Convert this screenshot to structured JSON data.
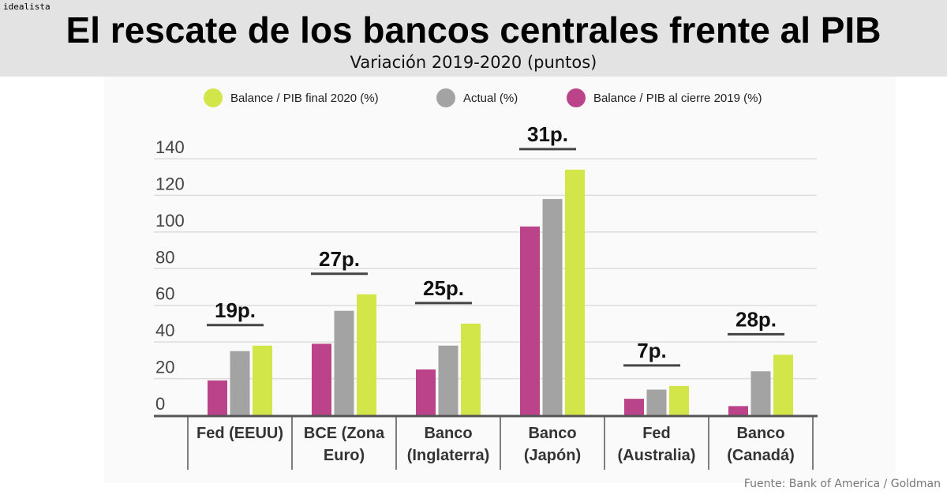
{
  "brand": "idealista",
  "title": "El rescate de los bancos centrales frente al PIB",
  "subtitle": "Variación 2019-2020 (puntos)",
  "source": "Fuente: Bank of America / Goldman",
  "chart_data": {
    "type": "bar",
    "ylim": [
      0,
      140
    ],
    "yticks": [
      0,
      20,
      40,
      60,
      80,
      100,
      120,
      140
    ],
    "grid": true,
    "legend_position": "top",
    "categories": [
      "Fed (EEUU)",
      "BCE (Zona Euro)",
      "Banco (Inglaterra)",
      "Banco (Japón)",
      "Fed (Australia)",
      "Banco (Canadá)"
    ],
    "category_lines": [
      [
        "Fed (EEUU)"
      ],
      [
        "BCE (Zona",
        "Euro)"
      ],
      [
        "Banco",
        "(Inglaterra)"
      ],
      [
        "Banco",
        "(Japón)"
      ],
      [
        "Fed",
        "(Australia)"
      ],
      [
        "Banco",
        "(Canadá)"
      ]
    ],
    "series": [
      {
        "name": "Balance / PIB al cierre 2019 (%)",
        "color": "#bb438a",
        "values": [
          19,
          39,
          25,
          103,
          9,
          5
        ]
      },
      {
        "name": "Actual (%)",
        "color": "#a3a3a3",
        "values": [
          35,
          57,
          38,
          118,
          14,
          24
        ]
      },
      {
        "name": "Balance / PIB final 2020 (%)",
        "color": "#d2e64a",
        "values": [
          38,
          66,
          50,
          134,
          16,
          33
        ]
      }
    ],
    "legend_order": [
      2,
      1,
      0
    ],
    "annotations": [
      "19p.",
      "27p.",
      "25p.",
      "31p.",
      "7p.",
      "28p."
    ]
  }
}
